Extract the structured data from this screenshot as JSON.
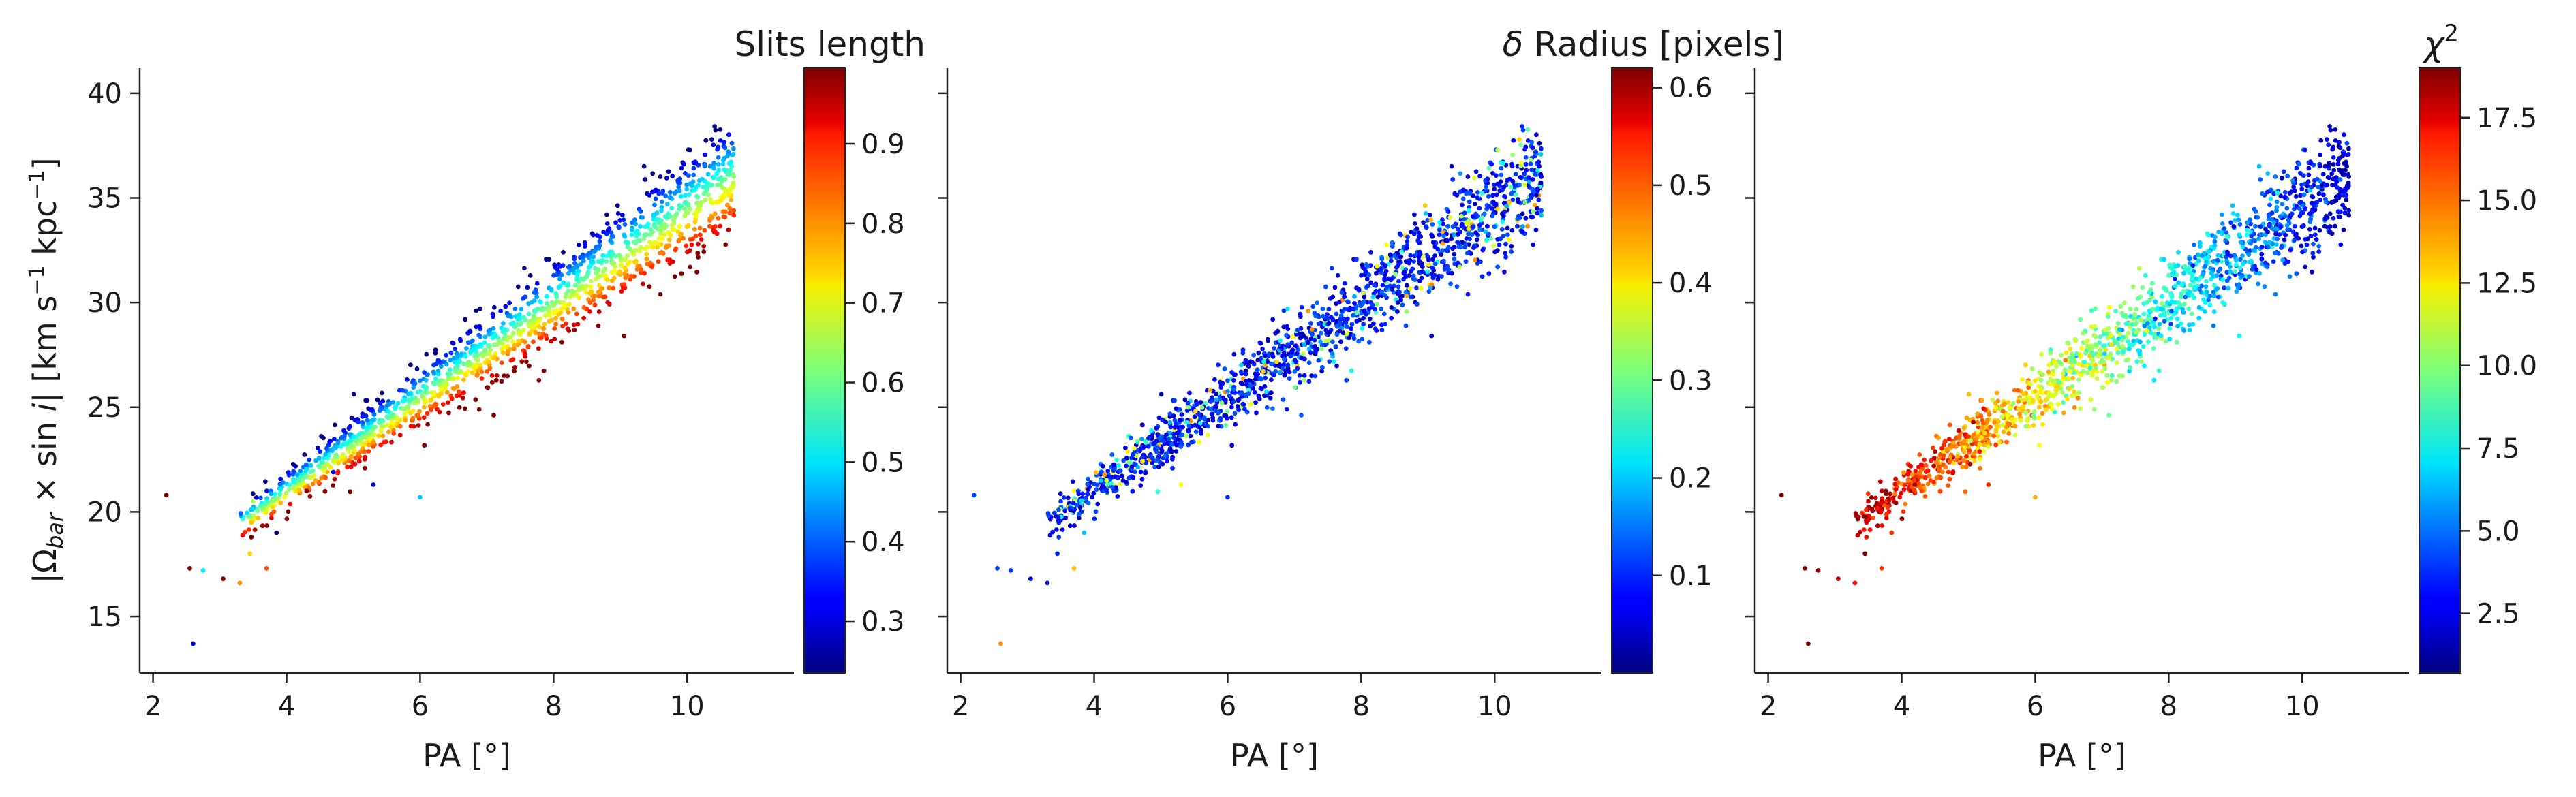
{
  "figure": {
    "background": "#ffffff"
  },
  "chart_data": [
    {
      "type": "scatter",
      "title": "",
      "xlabel": "PA [°]",
      "ylabel_parts": {
        "abs_open": "|Ω",
        "sub": "bar",
        "times_sin": " × sin ",
        "i": "i",
        "abs_close": "|",
        "units": "  [km s",
        "exp1": "−1",
        "kpc": " kpc",
        "exp2": "−1",
        "bracket": "]"
      },
      "xlim": [
        1.8,
        11.6
      ],
      "ylim": [
        12.3,
        41.2
      ],
      "xticks": [
        "2",
        "4",
        "6",
        "8",
        "10"
      ],
      "yticks": [
        "15",
        "20",
        "25",
        "30",
        "35",
        "40"
      ],
      "colorbar": {
        "title": "Slits length",
        "colormap": "jet",
        "range": [
          0.235,
          0.995
        ],
        "ticks": [
          "0.3",
          "0.4",
          "0.5",
          "0.6",
          "0.7",
          "0.8",
          "0.9"
        ]
      },
      "color_trend": "offset-from-fit",
      "points_note_ranges": {
        "x_range": [
          2.2,
          11.1
        ],
        "y_range": [
          13.7,
          37.0
        ]
      }
    },
    {
      "type": "scatter",
      "title": "",
      "xlabel": "PA [°]",
      "xlim": [
        1.8,
        11.6
      ],
      "ylim": [
        12.3,
        41.2
      ],
      "xticks": [
        "2",
        "4",
        "6",
        "8",
        "10"
      ],
      "colorbar": {
        "title_symbol": "δ",
        "title_text": " Radius [pixels]",
        "colormap": "jet",
        "range": [
          0.0,
          0.62
        ],
        "ticks": [
          "0.1",
          "0.2",
          "0.3",
          "0.4",
          "0.5",
          "0.6"
        ]
      },
      "color_trend": "mostly-low",
      "points_note_ranges": {
        "x_range": [
          2.2,
          11.1
        ],
        "y_range": [
          13.7,
          37.0
        ]
      }
    },
    {
      "type": "scatter",
      "title": "",
      "xlabel": "PA [°]",
      "xlim": [
        1.8,
        11.6
      ],
      "ylim": [
        12.3,
        41.2
      ],
      "xticks": [
        "2",
        "4",
        "6",
        "8",
        "10"
      ],
      "colorbar": {
        "title_base": "χ",
        "title_exp": "2",
        "colormap": "jet",
        "range": [
          0.7,
          19.0
        ],
        "ticks": [
          "2.5",
          "5.0",
          "7.5",
          "10.0",
          "12.5",
          "15.0",
          "17.5"
        ]
      },
      "color_trend": "decreasing-with-x",
      "points_note_ranges": {
        "x_range": [
          2.2,
          11.1
        ],
        "y_range": [
          13.7,
          37.0
        ]
      }
    }
  ]
}
